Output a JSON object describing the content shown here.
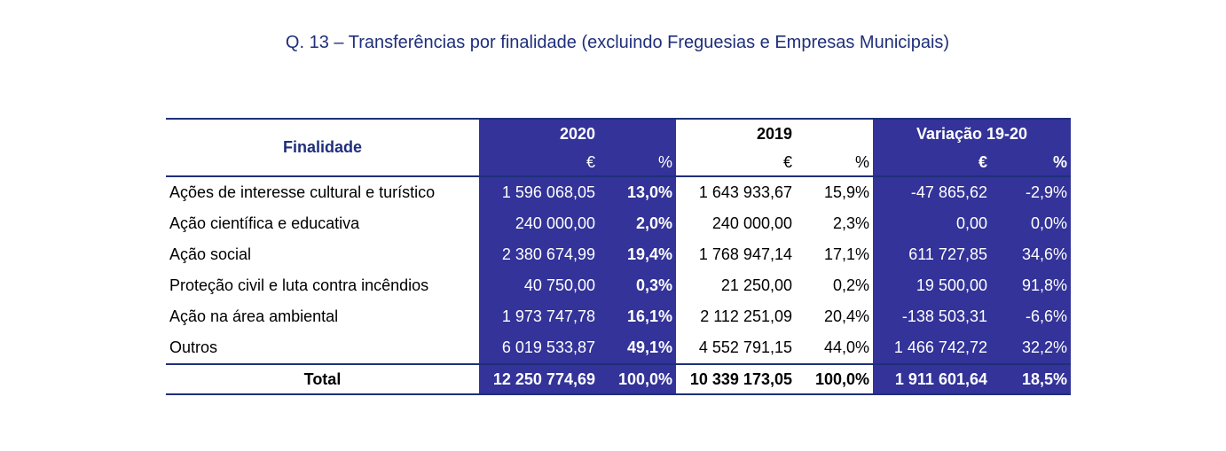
{
  "title": "Q. 13 – Transferências por finalidade (excluindo Freguesias e Empresas Municipais)",
  "table": {
    "first_col_header": "Finalidade",
    "groups": [
      "2020",
      "2019",
      "Variação 19-20"
    ],
    "subheaders": [
      "€",
      "%",
      "€",
      "%",
      "€",
      "%"
    ],
    "rows": [
      {
        "label": "Ações de interesse cultural e turístico",
        "v2020": "1 596 068,05",
        "p2020": "13,0%",
        "v2019": "1 643 933,67",
        "p2019": "15,9%",
        "var": "-47 865,62",
        "pvar": "-2,9%"
      },
      {
        "label": "Ação científica e educativa",
        "v2020": "240 000,00",
        "p2020": "2,0%",
        "v2019": "240 000,00",
        "p2019": "2,3%",
        "var": "0,00",
        "pvar": "0,0%"
      },
      {
        "label": "Ação social",
        "v2020": "2 380 674,99",
        "p2020": "19,4%",
        "v2019": "1 768 947,14",
        "p2019": "17,1%",
        "var": "611 727,85",
        "pvar": "34,6%"
      },
      {
        "label": "Proteção civil e luta contra incêndios",
        "v2020": "40 750,00",
        "p2020": "0,3%",
        "v2019": "21 250,00",
        "p2019": "0,2%",
        "var": "19 500,00",
        "pvar": "91,8%"
      },
      {
        "label": "Ação na área ambiental",
        "v2020": "1 973 747,78",
        "p2020": "16,1%",
        "v2019": "2 112 251,09",
        "p2019": "20,4%",
        "var": "-138 503,31",
        "pvar": "-6,6%"
      },
      {
        "label": "Outros",
        "v2020": "6 019 533,87",
        "p2020": "49,1%",
        "v2019": "4 552 791,15",
        "p2019": "44,0%",
        "var": "1 466 742,72",
        "pvar": "32,2%"
      }
    ],
    "total": {
      "label": "Total",
      "v2020": "12 250 774,69",
      "p2020": "100,0%",
      "v2019": "10 339 173,05",
      "p2019": "100,0%",
      "var": "1 911 601,64",
      "pvar": "18,5%"
    }
  }
}
